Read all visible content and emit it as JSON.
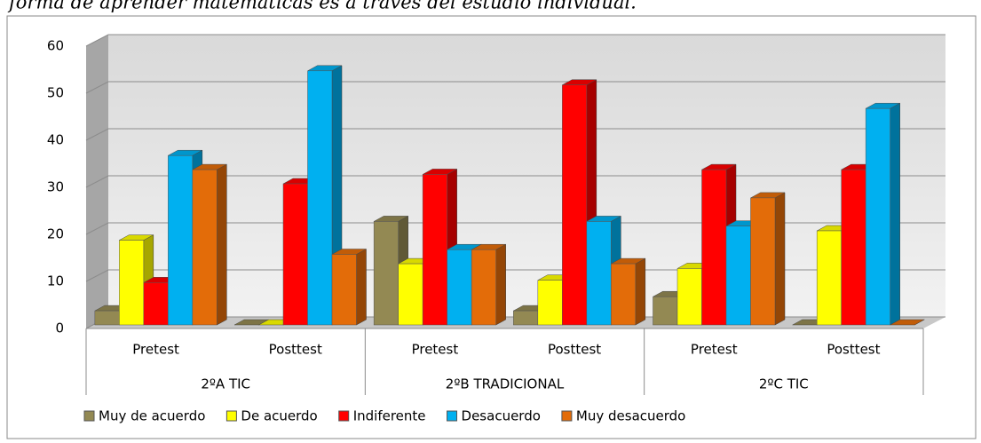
{
  "chart_data": {
    "type": "bar3d",
    "title": "forma de aprender matemáticas es a través del estudio individual.",
    "categories": [
      "Pretest",
      "Posttest",
      "Pretest",
      "Posttest",
      "Pretest",
      "Posttest"
    ],
    "groups": [
      "2ºA  TIC",
      "2ºB  TRADICIONAL",
      "2ºC  TIC"
    ],
    "series": [
      {
        "name": "Muy de acuerdo",
        "color": "#938953",
        "values": [
          3,
          0,
          22,
          3,
          6,
          0
        ]
      },
      {
        "name": "De acuerdo",
        "color": "#ffff00",
        "values": [
          18,
          0,
          13,
          9.5,
          12,
          20
        ]
      },
      {
        "name": "Indiferente",
        "color": "#ff0000",
        "values": [
          9,
          30,
          32,
          51,
          33,
          33
        ]
      },
      {
        "name": "Desacuerdo",
        "color": "#00b0f0",
        "values": [
          36,
          54,
          16,
          22,
          21,
          46
        ]
      },
      {
        "name": "Muy desacuerdo",
        "color": "#e36c09",
        "values": [
          33,
          15,
          16,
          13,
          27,
          0
        ]
      }
    ],
    "ylim": [
      0,
      60
    ],
    "yticks": [
      0,
      10,
      20,
      30,
      40,
      50,
      60
    ],
    "grid": true,
    "legend": "bottom"
  }
}
